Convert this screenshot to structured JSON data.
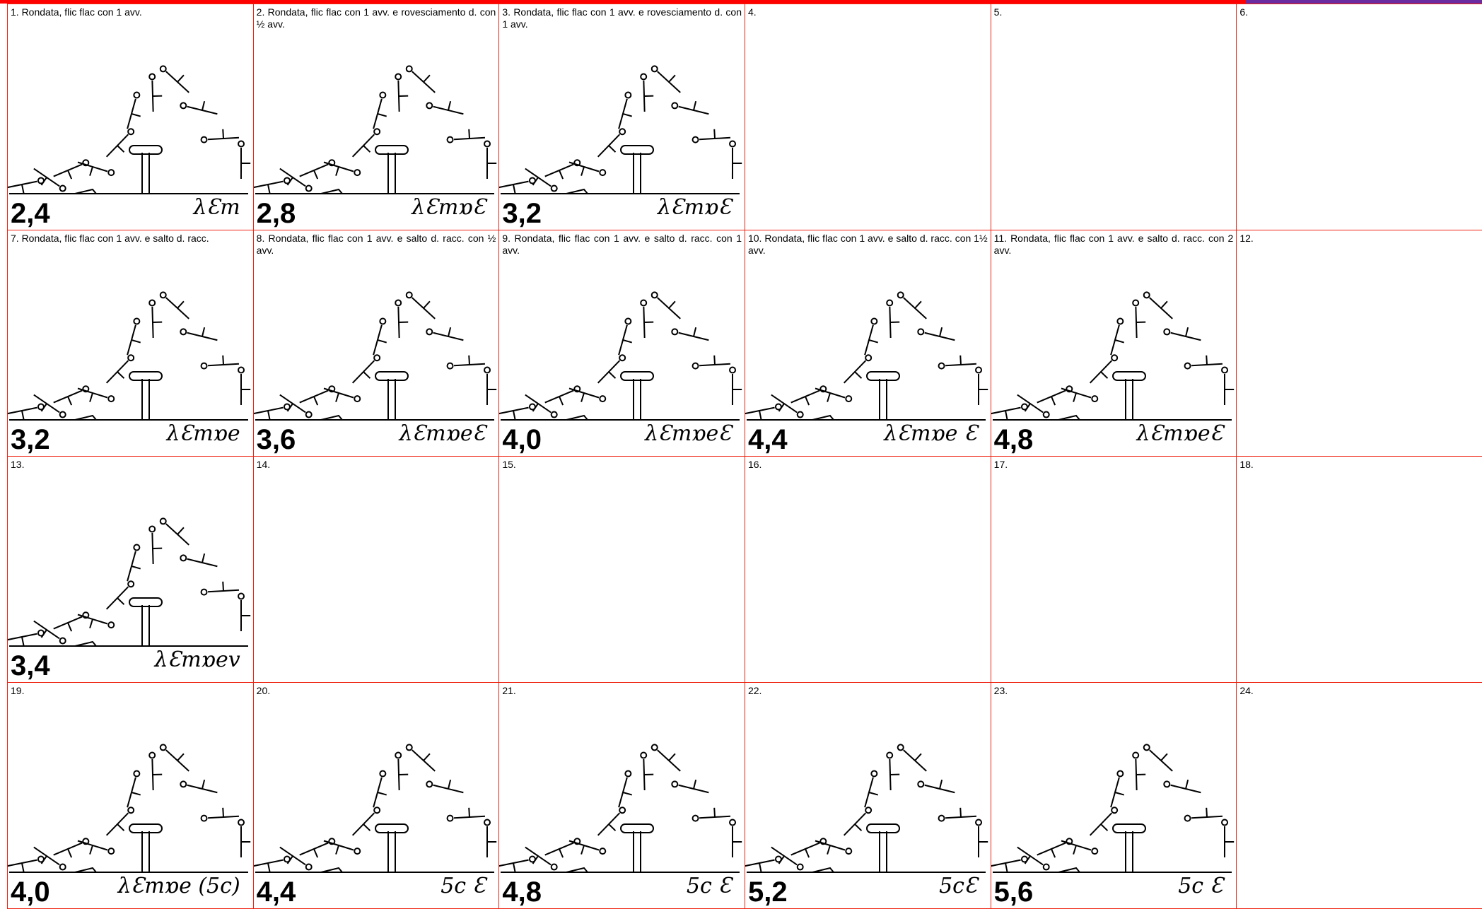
{
  "cells": [
    {
      "label": "1.   Rondata, flic flac con 1 avv.",
      "score": "2,4",
      "notation": "λƐm"
    },
    {
      "label": "2.   Rondata, flic flac con 1 avv. e rovesciamento d. con ½ avv.",
      "score": "2,8",
      "notation": "λƐmɒƐ"
    },
    {
      "label": "3.   Rondata, flic flac con 1 avv. e rovesciamento d. con 1 avv.",
      "score": "3,2",
      "notation": "λƐmɒƐ"
    },
    {
      "label": "4."
    },
    {
      "label": "5."
    },
    {
      "label": "6."
    },
    {
      "label": "7.   Rondata, flic flac con 1 avv. e salto d. racc.",
      "score": "3,2",
      "notation": "λƐmɒe"
    },
    {
      "label": "8.   Rondata, flic flac con 1 avv. e salto d. racc. con ½ avv.",
      "score": "3,6",
      "notation": "λƐmɒeƐ"
    },
    {
      "label": "9.   Rondata, flic flac con 1 avv. e salto d. racc. con 1 avv.",
      "score": "4,0",
      "notation": "λƐmɒeƐ"
    },
    {
      "label": "10. Rondata, flic flac con 1 avv. e salto d. racc. con 1½ avv.",
      "score": "4,4",
      "notation": "λƐmɒe Ɛ"
    },
    {
      "label": "11. Rondata, flic flac con 1 avv. e salto d. racc. con 2 avv.",
      "score": "4,8",
      "notation": "λƐmɒeƐ"
    },
    {
      "label": "12."
    },
    {
      "label": "13.",
      "score": "3,4",
      "notation": "λƐmɒev"
    },
    {
      "label": "14."
    },
    {
      "label": "15."
    },
    {
      "label": "16."
    },
    {
      "label": "17."
    },
    {
      "label": "18."
    },
    {
      "label": "19.",
      "score": "4,0",
      "notation": "λƐmɒe (5c)"
    },
    {
      "label": "20.",
      "score": "4,4",
      "notation": "5c Ɛ"
    },
    {
      "label": "21.",
      "score": "4,8",
      "notation": "5c Ɛ"
    },
    {
      "label": "22.",
      "score": "5,2",
      "notation": "5cƐ"
    },
    {
      "label": "23.",
      "score": "5,6",
      "notation": "5c Ɛ"
    },
    {
      "label": "24."
    }
  ]
}
